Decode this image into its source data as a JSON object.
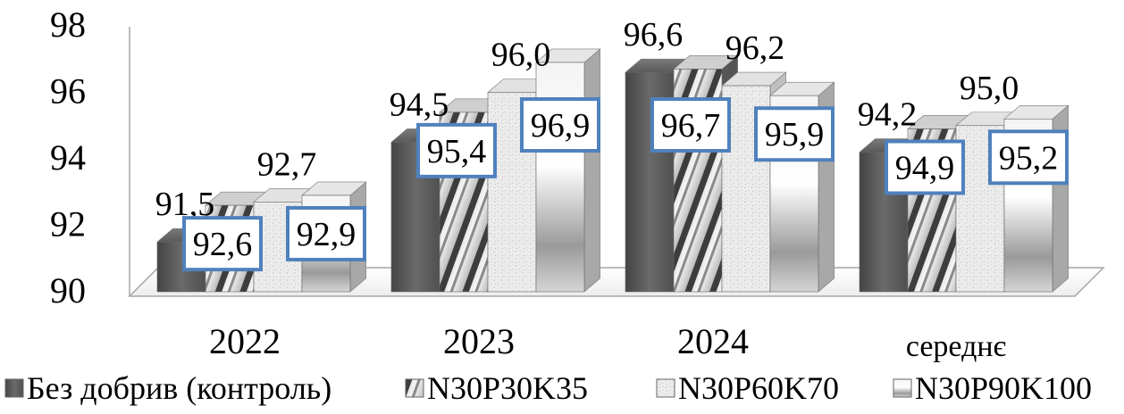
{
  "chart_data": {
    "type": "bar",
    "style": "3d-clustered",
    "categories": [
      "2022",
      "2023",
      "2024",
      "середнє"
    ],
    "series": [
      {
        "name": "Без добрив (контроль)",
        "values": [
          91.5,
          94.5,
          96.6,
          94.2
        ],
        "labels": [
          "91,5",
          "94,5",
          "96,6",
          "94,2"
        ],
        "label_style": "plain",
        "pattern": "dark-solid"
      },
      {
        "name": "N30P30K35",
        "values": [
          92.6,
          95.4,
          96.7,
          94.9
        ],
        "labels": [
          "92,6",
          "95,4",
          "96,7",
          "94,9"
        ],
        "label_style": "boxed",
        "pattern": "diagonal-stripes"
      },
      {
        "name": "N30P60K70",
        "values": [
          92.7,
          96.0,
          96.2,
          95.0
        ],
        "labels": [
          "92,7",
          "96,0",
          "96,2",
          "95,0"
        ],
        "label_style": "plain",
        "pattern": "light-texture"
      },
      {
        "name": "N30P90K100",
        "values": [
          92.9,
          96.9,
          95.9,
          95.2
        ],
        "labels": [
          "92,9",
          "96,9",
          "95,9",
          "95,2"
        ],
        "label_style": "boxed",
        "pattern": "silver-gradient"
      }
    ],
    "y_ticks": [
      "90",
      "92",
      "94",
      "96",
      "98"
    ],
    "ylim": [
      90,
      98
    ],
    "title": "",
    "xlabel": "",
    "ylabel": "",
    "grid": false,
    "legend_position": "bottom",
    "colors": {
      "label_box_border": "#4f81bd",
      "dark_bar": "#5a5a5a",
      "axis": "#a6a6a6"
    }
  }
}
